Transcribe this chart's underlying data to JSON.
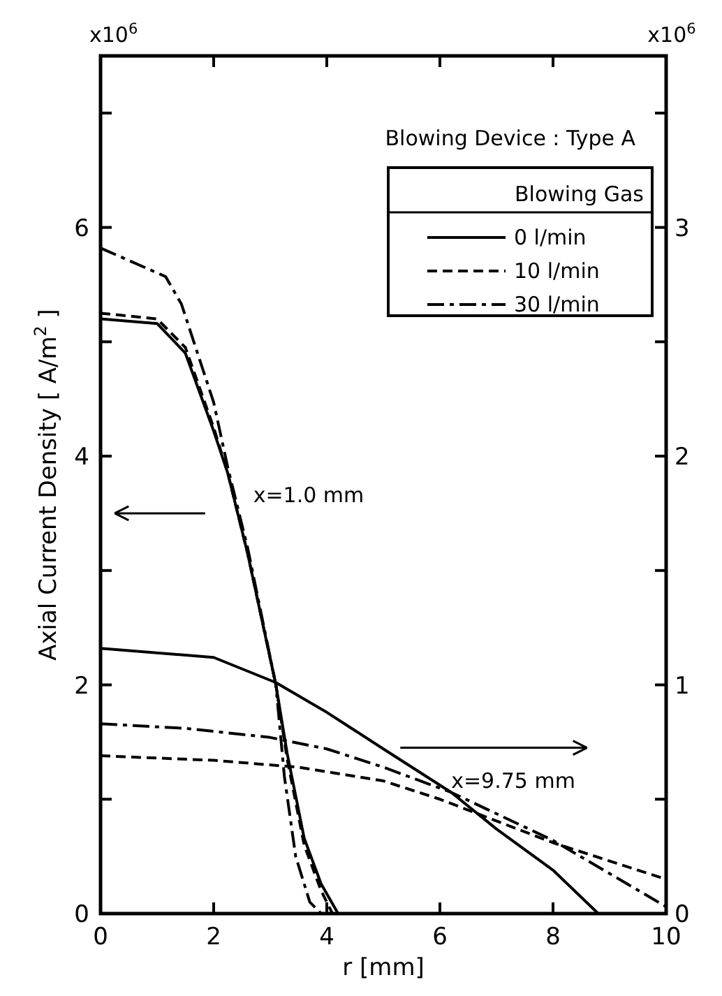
{
  "chart_data": {
    "type": "line",
    "xlabel": "r [mm]",
    "ylabel": "Axial Current Density [ A/m$^{2}$ ]",
    "legend_title": "Blowing Gas",
    "legend": "top right",
    "grid": false,
    "xlim": [
      0,
      10
    ],
    "xticks": [
      0,
      2,
      4,
      6,
      8,
      10
    ],
    "ylim": [
      0,
      7.5
    ],
    "yticks": [
      0,
      {
        "value": 1,
        "label": null
      },
      2,
      {
        "value": 3,
        "label": null
      },
      4,
      {
        "value": 5,
        "label": null
      },
      6,
      {
        "value": 7,
        "label": null
      }
    ],
    "y2lim": [
      0,
      3.75
    ],
    "y2ticks": [
      0,
      {
        "value": 0.5,
        "label": null
      },
      1,
      {
        "value": 1.5,
        "label": null
      },
      2,
      {
        "value": 2.5,
        "label": null
      },
      3,
      {
        "value": 3.5,
        "label": null
      }
    ],
    "annotations": [
      "Blowing Device : Type A",
      "x=1.0 mm",
      "x=9.75 mm",
      "x10$^{6}$",
      "x10$^{6}$"
    ],
    "series": [
      {
        "name": "0 l/min",
        "color": "#000000",
        "line_style": "solid",
        "x": [
          0,
          1,
          1.5,
          2,
          2.25,
          2.6,
          3.1,
          3.3,
          3.6,
          3.9,
          4.2
        ],
        "values": [
          5.2,
          5.16,
          4.9,
          4.22,
          3.85,
          3.15,
          2.0,
          1.4,
          0.66,
          0.26,
          0
        ]
      },
      {
        "name": "10 l/min",
        "color": "#000000",
        "line_style": "dashed",
        "x": [
          0,
          1,
          1.5,
          2,
          2.25,
          2.6,
          3.1,
          3.3,
          3.6,
          3.9,
          4.1
        ],
        "values": [
          5.25,
          5.2,
          4.95,
          4.25,
          3.85,
          3.15,
          2.0,
          1.35,
          0.6,
          0.2,
          0
        ]
      },
      {
        "name": "30 l/min",
        "color": "#000000",
        "line_style": "dashdot",
        "x": [
          0,
          1.15,
          1.43,
          2,
          2.25,
          2.6,
          3.1,
          3.25,
          3.45,
          3.7,
          3.9
        ],
        "values": [
          5.82,
          5.57,
          5.33,
          4.47,
          3.9,
          3.2,
          2.0,
          1.2,
          0.5,
          0.1,
          0
        ]
      },
      {
        "color": "#000000",
        "line_style": "solid",
        "axis": "y2",
        "x": [
          0,
          2,
          3.1,
          4,
          5,
          6.2,
          7,
          8,
          8.8
        ],
        "values": [
          1.16,
          1.12,
          1.01,
          0.88,
          0.72,
          0.53,
          0.37,
          0.19,
          0
        ]
      },
      {
        "color": "#000000",
        "line_style": "dashed",
        "axis": "y2",
        "x": [
          0,
          2,
          3.5,
          5,
          6,
          8,
          10
        ],
        "values": [
          0.69,
          0.67,
          0.64,
          0.58,
          0.5,
          0.31,
          0.15
        ]
      },
      {
        "color": "#000000",
        "line_style": "dashdot",
        "axis": "y2",
        "x": [
          0,
          1.5,
          3,
          4,
          5,
          6.2,
          8,
          10
        ],
        "values": [
          0.83,
          0.81,
          0.77,
          0.72,
          0.64,
          0.53,
          0.32,
          0.03
        ]
      }
    ]
  }
}
